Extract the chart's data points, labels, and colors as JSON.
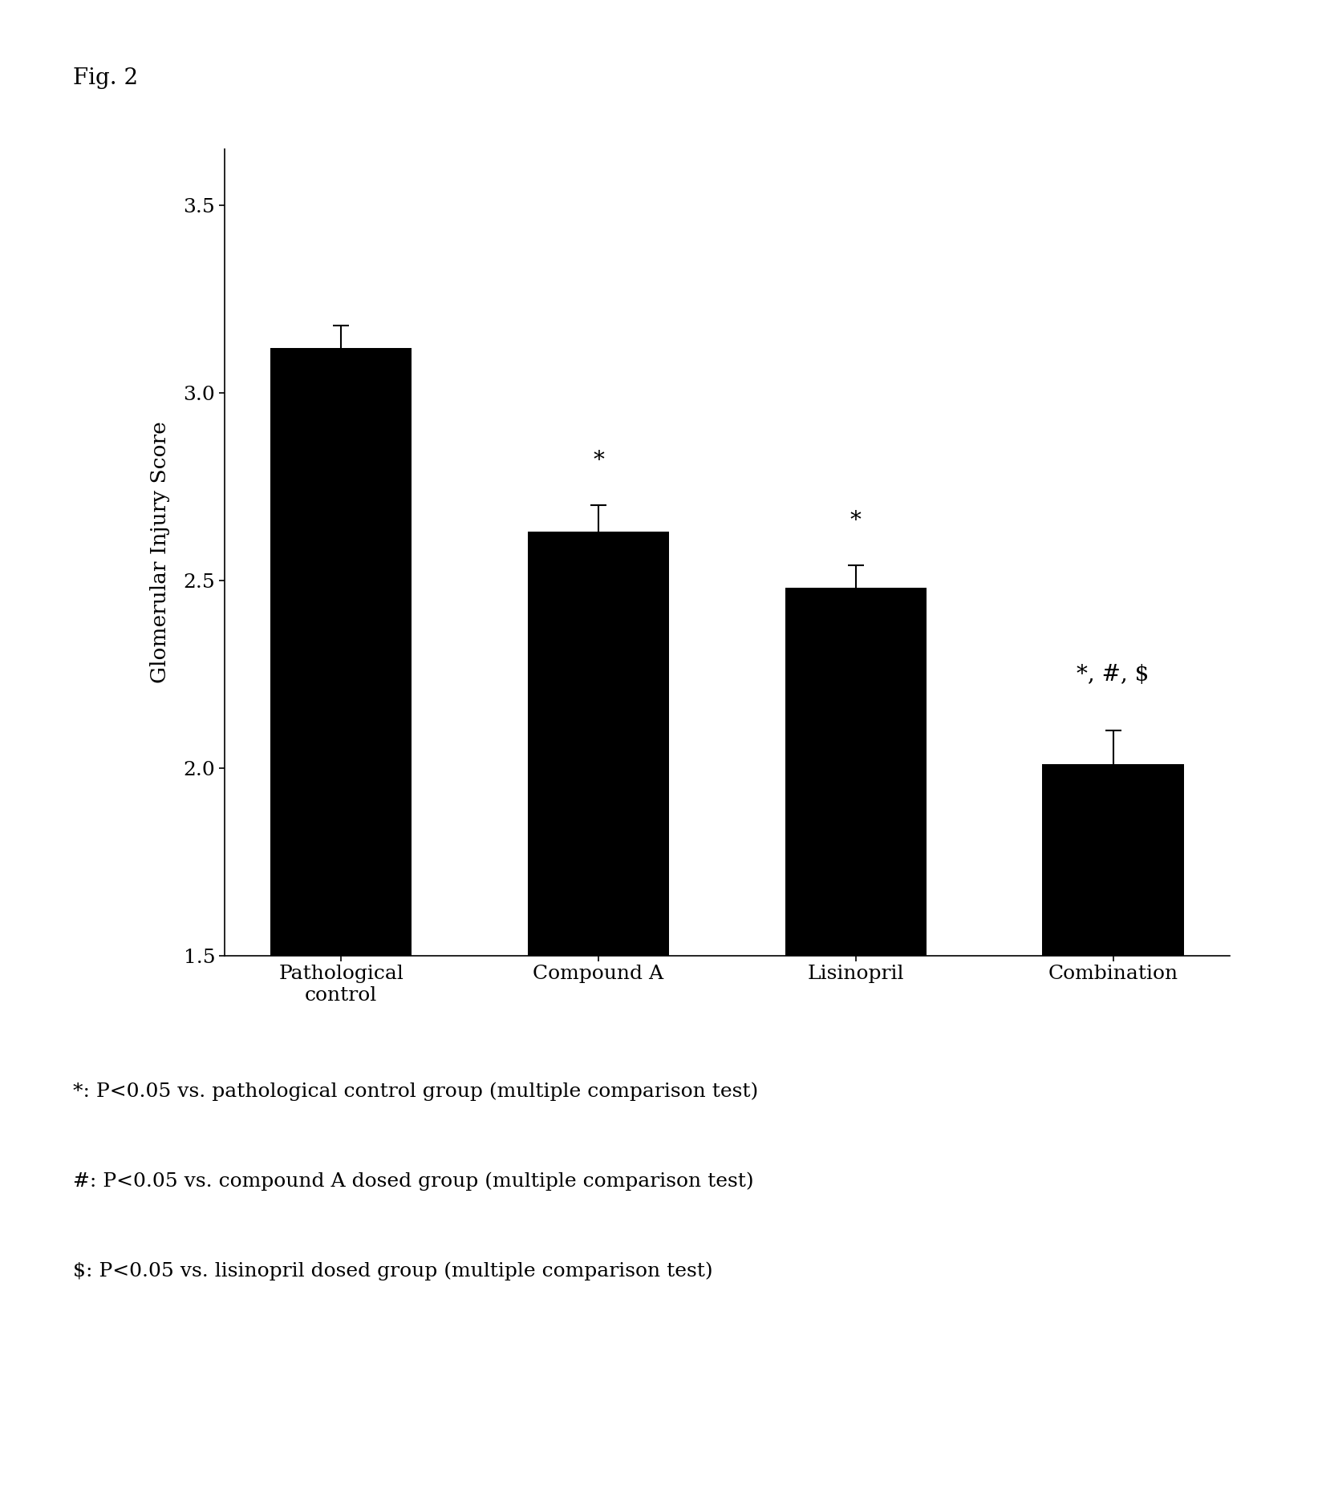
{
  "categories": [
    "Pathological\ncontrol",
    "Compound A",
    "Lisinopril",
    "Combination"
  ],
  "values": [
    3.12,
    2.63,
    2.48,
    2.01
  ],
  "errors": [
    0.06,
    0.07,
    0.06,
    0.09
  ],
  "bar_color": "#000000",
  "bar_width": 0.55,
  "ylabel": "Glomerular Injury Score",
  "ylim": [
    1.5,
    3.65
  ],
  "yticks": [
    1.5,
    2.0,
    2.5,
    3.0,
    3.5
  ],
  "fig_label": "Fig. 2",
  "annotations": [
    "",
    "*",
    "*",
    "*, #, $"
  ],
  "annotation_offsets": [
    0.0,
    0.09,
    0.09,
    0.12
  ],
  "legend_lines": [
    "*: P<0.05 vs. pathological control group (multiple comparison test)",
    "#: P<0.05 vs. compound A dosed group (multiple comparison test)",
    "$: P<0.05 vs. lisinopril dosed group (multiple comparison test)"
  ],
  "background_color": "#ffffff",
  "fig_label_fontsize": 20,
  "label_fontsize": 19,
  "tick_fontsize": 18,
  "annot_fontsize": 20,
  "legend_fontsize": 18
}
